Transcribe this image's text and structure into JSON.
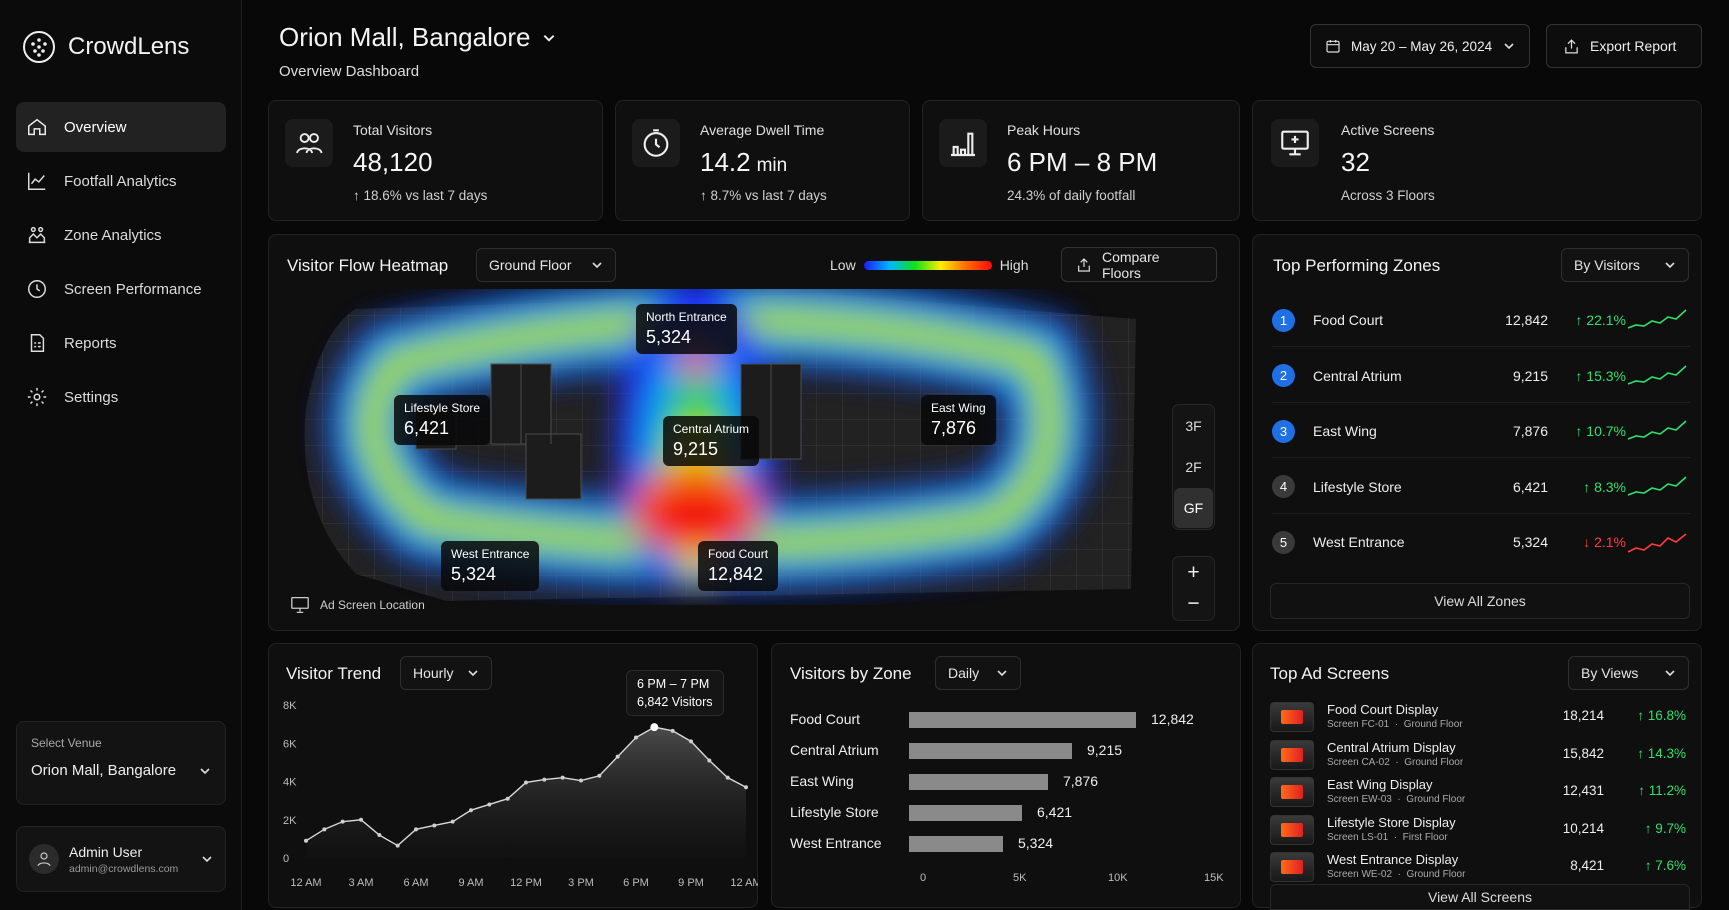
{
  "brand": {
    "name": "CrowdLens"
  },
  "sidebar": {
    "items": [
      {
        "label": "Overview",
        "icon": "home-icon",
        "active": true
      },
      {
        "label": "Footfall Analytics",
        "icon": "line-chart-icon"
      },
      {
        "label": "Zone Analytics",
        "icon": "zone-icon"
      },
      {
        "label": "Screen Performance",
        "icon": "clock-icon"
      },
      {
        "label": "Reports",
        "icon": "report-icon"
      },
      {
        "label": "Settings",
        "icon": "gear-icon"
      }
    ],
    "venue_label": "Select Venue",
    "venue_value": "Orion Mall, Bangalore",
    "user_name": "Admin User",
    "user_email": "admin@crowdlens.com"
  },
  "header": {
    "title": "Orion Mall, Bangalore",
    "subtitle": "Overview Dashboard",
    "date_range": "May 20 – May 26, 2024",
    "export_label": "Export Report"
  },
  "kpis": [
    {
      "label": "Total Visitors",
      "value": "48,120",
      "unit": "",
      "sub": "↑ 18.6% vs last 7 days",
      "icon": "users-icon"
    },
    {
      "label": "Average Dwell Time",
      "value": "14.2",
      "unit": "min",
      "sub": "↑ 8.7% vs last 7 days",
      "icon": "timer-icon"
    },
    {
      "label": "Peak Hours",
      "value": "6 PM – 8 PM",
      "unit": "",
      "sub": "24.3% of daily footfall",
      "icon": "bar-chart-icon"
    },
    {
      "label": "Active Screens",
      "value": "32",
      "unit": "",
      "sub": "Across 3 Floors",
      "icon": "monitor-icon"
    }
  ],
  "heatmap": {
    "title": "Visitor Flow Heatmap",
    "floor_select": "Ground Floor",
    "legend_low": "Low",
    "legend_high": "High",
    "compare_label": "Compare Floors",
    "zones": [
      {
        "name": "North Entrance",
        "value": "5,324"
      },
      {
        "name": "Lifestyle Store",
        "value": "6,421"
      },
      {
        "name": "Central Atrium",
        "value": "9,215"
      },
      {
        "name": "East Wing",
        "value": "7,876"
      },
      {
        "name": "West Entrance",
        "value": "5,324"
      },
      {
        "name": "Food Court",
        "value": "12,842"
      }
    ],
    "floors": [
      "3F",
      "2F",
      "GF"
    ],
    "active_floor": "GF",
    "ad_legend": "Ad Screen Location"
  },
  "top_zones": {
    "title": "Top Performing Zones",
    "sort": "By Visitors",
    "items": [
      {
        "rank": "1",
        "name": "Food Court",
        "value": "12,842",
        "change": "↑ 22.1%",
        "dir": "up"
      },
      {
        "rank": "2",
        "name": "Central Atrium",
        "value": "9,215",
        "change": "↑ 15.3%",
        "dir": "up"
      },
      {
        "rank": "3",
        "name": "East Wing",
        "value": "7,876",
        "change": "↑ 10.7%",
        "dir": "up"
      },
      {
        "rank": "4",
        "name": "Lifestyle Store",
        "value": "6,421",
        "change": "↑ 8.3%",
        "dir": "up"
      },
      {
        "rank": "5",
        "name": "West Entrance",
        "value": "5,324",
        "change": "↓ 2.1%",
        "dir": "down"
      }
    ],
    "view_all": "View All Zones"
  },
  "trend": {
    "title": "Visitor Trend",
    "interval": "Hourly",
    "tooltip_time": "6 PM – 7 PM",
    "tooltip_value": "6,842 Visitors"
  },
  "by_zone": {
    "title": "Visitors by Zone",
    "interval": "Daily"
  },
  "ad_screens": {
    "title": "Top Ad Screens",
    "sort": "By Views",
    "items": [
      {
        "name": "Food Court Display",
        "id": "Screen FC-01",
        "floor": "Ground Floor",
        "views": "18,214",
        "change": "↑ 16.8%"
      },
      {
        "name": "Central Atrium Display",
        "id": "Screen CA-02",
        "floor": "Ground Floor",
        "views": "15,842",
        "change": "↑ 14.3%"
      },
      {
        "name": "East Wing Display",
        "id": "Screen EW-03",
        "floor": "Ground Floor",
        "views": "12,431",
        "change": "↑ 11.2%"
      },
      {
        "name": "Lifestyle Store Display",
        "id": "Screen LS-01",
        "floor": "First Floor",
        "views": "10,214",
        "change": "↑ 9.7%"
      },
      {
        "name": "West Entrance Display",
        "id": "Screen WE-02",
        "floor": "Ground Floor",
        "views": "8,421",
        "change": "↑ 7.6%"
      }
    ],
    "view_all": "View All Screens"
  },
  "colors": {
    "accent": "#1f6fe5",
    "up": "#2ee06a",
    "down": "#ff3b3b"
  },
  "chart_data": [
    {
      "type": "area",
      "x": [
        "12 AM",
        "1 AM",
        "2 AM",
        "3 AM",
        "4 AM",
        "5 AM",
        "6 AM",
        "7 AM",
        "8 AM",
        "9 AM",
        "10 AM",
        "11 AM",
        "12 PM",
        "1 PM",
        "2 PM",
        "3 PM",
        "4 PM",
        "5 PM",
        "6 PM",
        "7 PM",
        "8 PM",
        "9 PM",
        "10 PM",
        "11 PM",
        "12 AM"
      ],
      "values": [
        900,
        1500,
        1900,
        2000,
        1200,
        650,
        1500,
        1700,
        1900,
        2500,
        2800,
        3100,
        3950,
        4100,
        4200,
        4050,
        4300,
        5300,
        6300,
        6842,
        6650,
        6100,
        5100,
        4200,
        3700
      ],
      "x_ticks": [
        "12 AM",
        "3 AM",
        "6 AM",
        "9 AM",
        "12 PM",
        "3 PM",
        "6 PM",
        "9 PM",
        "12 AM"
      ],
      "y_ticks": [
        "0",
        "2K",
        "4K",
        "6K",
        "8K"
      ],
      "ylim": [
        0,
        8000
      ]
    },
    {
      "type": "bar",
      "categories": [
        "Food Court",
        "Central Atrium",
        "East Wing",
        "Lifestyle Store",
        "West Entrance"
      ],
      "values": [
        12842,
        9215,
        7876,
        6421,
        5324
      ],
      "value_labels": [
        "12,842",
        "9,215",
        "7,876",
        "6,421",
        "5,324"
      ],
      "x_ticks": [
        "0",
        "5K",
        "10K",
        "15K"
      ],
      "xlim": [
        0,
        15000
      ]
    }
  ]
}
